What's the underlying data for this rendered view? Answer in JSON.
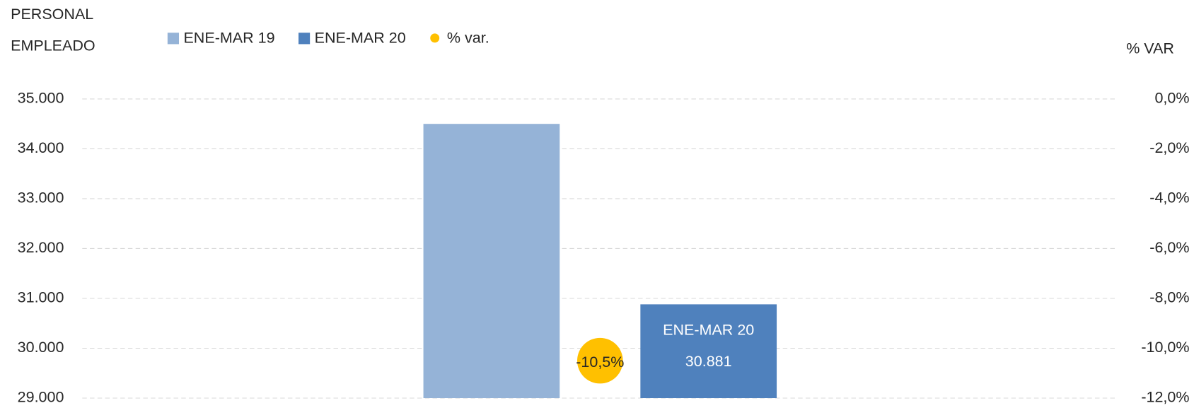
{
  "chart_data": {
    "type": "bar",
    "ylabel": [
      "PERSONAL",
      "EMPLEADO"
    ],
    "y2label": "% VAR",
    "categories": [
      null
    ],
    "series": [
      {
        "name": "ENE-MAR 19",
        "color": "#95b3d7",
        "values": [
          34500
        ]
      },
      {
        "name": "ENE-MAR 20",
        "color": "#4f81bd",
        "values": [
          30881
        ],
        "value_labels": [
          "30.881"
        ]
      },
      {
        "name": "% var.",
        "color": "#ffc000",
        "axis": "y2",
        "type": "scatter",
        "values": [
          -10.5
        ],
        "value_labels": [
          "-10,5%"
        ]
      }
    ],
    "ylim": [
      29000,
      35000
    ],
    "yticks": [
      {
        "value": 29000,
        "label": "29.000"
      },
      {
        "value": 30000,
        "label": "30.000"
      },
      {
        "value": 31000,
        "label": "31.000"
      },
      {
        "value": 32000,
        "label": "32.000"
      },
      {
        "value": 33000,
        "label": "33.000"
      },
      {
        "value": 34000,
        "label": "34.000"
      },
      {
        "value": 35000,
        "label": "35.000"
      }
    ],
    "y2lim": [
      -12,
      0
    ],
    "y2ticks": [
      {
        "value": -12,
        "label": "-12,0%"
      },
      {
        "value": -10,
        "label": "-10,0%"
      },
      {
        "value": -8,
        "label": "-8,0%"
      },
      {
        "value": -6,
        "label": "-6,0%"
      },
      {
        "value": -4,
        "label": "-4,0%"
      },
      {
        "value": -2,
        "label": "-2,0%"
      },
      {
        "value": 0,
        "label": "0,0%"
      }
    ],
    "grid": true,
    "legend": "top"
  }
}
